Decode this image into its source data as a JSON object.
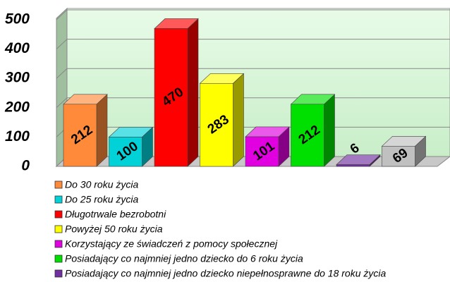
{
  "chart_data": {
    "type": "bar3d",
    "categories": [
      "Do 30 roku życia",
      "Do 25 roku życia",
      "Długotrwale bezrobotni",
      "Powyżej 50 roku życia",
      "Korzystający ze świadczeń z pomocy społecznej",
      "Posiadający co najmniej jedno dziecko do 6 roku życia",
      "Posiadający co najmniej jedno dziecko niepełnosprawne do 18 roku życia",
      null
    ],
    "values": [
      212,
      100,
      470,
      283,
      101,
      212,
      6,
      69
    ],
    "colors": [
      "#ff8a3a",
      "#00d2d8",
      "#ff0000",
      "#ffff00",
      "#e000e0",
      "#00e000",
      "#7030a0",
      "#c0c0c0"
    ],
    "ylim": [
      0,
      500
    ],
    "yticks": [
      0,
      100,
      200,
      300,
      400,
      500
    ],
    "grid": true
  }
}
